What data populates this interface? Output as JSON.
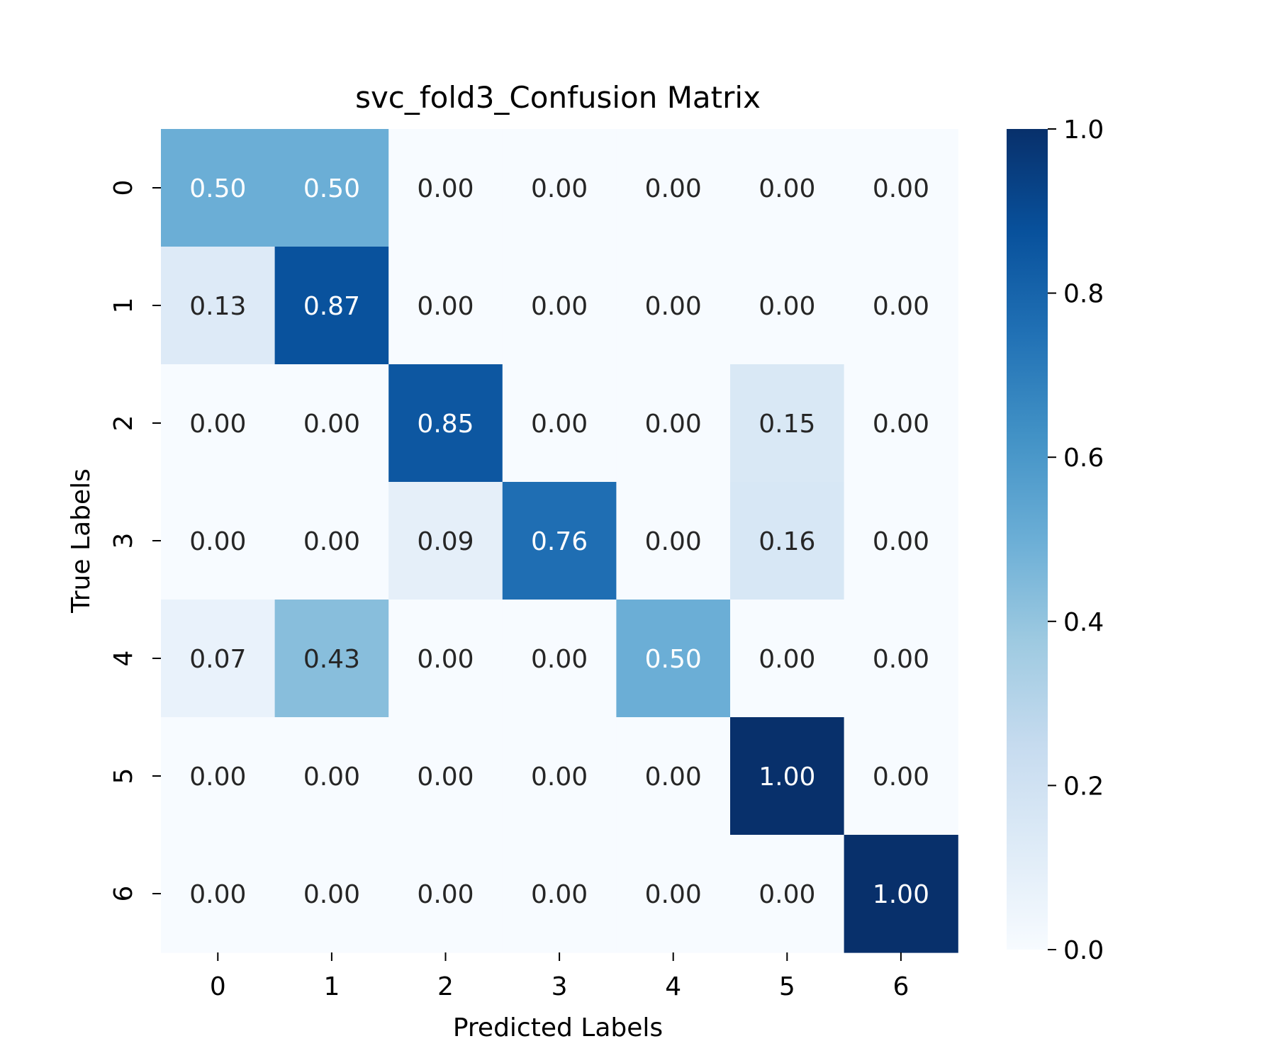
{
  "chart_data": {
    "type": "heatmap",
    "title": "svc_fold3_Confusion Matrix",
    "xlabel": "Predicted Labels",
    "ylabel": "True Labels",
    "x_categories": [
      "0",
      "1",
      "2",
      "3",
      "4",
      "5",
      "6"
    ],
    "y_categories": [
      "0",
      "1",
      "2",
      "3",
      "4",
      "5",
      "6"
    ],
    "values": [
      [
        0.5,
        0.5,
        0.0,
        0.0,
        0.0,
        0.0,
        0.0
      ],
      [
        0.13,
        0.87,
        0.0,
        0.0,
        0.0,
        0.0,
        0.0
      ],
      [
        0.0,
        0.0,
        0.85,
        0.0,
        0.0,
        0.15,
        0.0
      ],
      [
        0.0,
        0.0,
        0.09,
        0.76,
        0.0,
        0.16,
        0.0
      ],
      [
        0.07,
        0.43,
        0.0,
        0.0,
        0.5,
        0.0,
        0.0
      ],
      [
        0.0,
        0.0,
        0.0,
        0.0,
        0.0,
        1.0,
        0.0
      ],
      [
        0.0,
        0.0,
        0.0,
        0.0,
        0.0,
        0.0,
        1.0
      ]
    ],
    "value_format": "0.00",
    "colormap": "Blues",
    "vmin": 0.0,
    "vmax": 1.0,
    "colorbar_ticks": [
      "0.0",
      "0.2",
      "0.4",
      "0.6",
      "0.8",
      "1.0"
    ],
    "colorbar_placement": "right"
  }
}
